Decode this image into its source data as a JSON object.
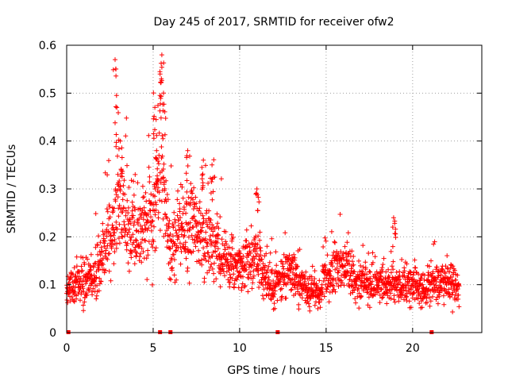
{
  "chart_data": {
    "type": "scatter",
    "title": "Day 245 of 2017, SRMTID for receiver ofw2",
    "xlabel": "GPS time / hours",
    "ylabel": "SRMTID / TECUs",
    "xlim": [
      0,
      24
    ],
    "ylim": [
      0,
      0.6
    ],
    "xticks": [
      "0",
      "5",
      "10",
      "15",
      "20"
    ],
    "yticks": [
      "0",
      "0.1",
      "0.2",
      "0.3",
      "0.4",
      "0.5",
      "0.6"
    ],
    "grid": true,
    "marker": "+",
    "color": "#ff0000",
    "series": [
      {
        "name": "ofw2",
        "trend": [
          [
            0.0,
            0.09
          ],
          [
            0.5,
            0.1
          ],
          [
            1.0,
            0.11
          ],
          [
            1.5,
            0.11
          ],
          [
            2.0,
            0.15
          ],
          [
            2.5,
            0.2
          ],
          [
            3.0,
            0.28
          ],
          [
            3.5,
            0.24
          ],
          [
            4.0,
            0.19
          ],
          [
            4.5,
            0.22
          ],
          [
            5.0,
            0.27
          ],
          [
            5.5,
            0.33
          ],
          [
            6.0,
            0.17
          ],
          [
            6.5,
            0.21
          ],
          [
            7.0,
            0.22
          ],
          [
            7.5,
            0.2
          ],
          [
            8.0,
            0.19
          ],
          [
            8.5,
            0.19
          ],
          [
            9.0,
            0.16
          ],
          [
            9.5,
            0.14
          ],
          [
            10.0,
            0.13
          ],
          [
            10.5,
            0.14
          ],
          [
            11.0,
            0.17
          ],
          [
            11.5,
            0.11
          ],
          [
            12.0,
            0.1
          ],
          [
            12.5,
            0.12
          ],
          [
            13.0,
            0.13
          ],
          [
            13.5,
            0.1
          ],
          [
            14.0,
            0.09
          ],
          [
            14.5,
            0.08
          ],
          [
            15.0,
            0.11
          ],
          [
            15.5,
            0.13
          ],
          [
            16.0,
            0.14
          ],
          [
            16.5,
            0.12
          ],
          [
            17.0,
            0.11
          ],
          [
            17.5,
            0.1
          ],
          [
            18.0,
            0.1
          ],
          [
            18.5,
            0.1
          ],
          [
            19.0,
            0.1
          ],
          [
            19.5,
            0.1
          ],
          [
            20.0,
            0.1
          ],
          [
            20.5,
            0.09
          ],
          [
            21.0,
            0.1
          ],
          [
            21.5,
            0.1
          ],
          [
            22.0,
            0.11
          ],
          [
            22.7,
            0.09
          ]
        ],
        "sample_step_hours": 0.011,
        "x_end": 22.7
      }
    ],
    "peaks": [
      {
        "x": 2.8,
        "y": 0.57
      },
      {
        "x": 2.9,
        "y": 0.47
      },
      {
        "x": 3.1,
        "y": 0.4
      },
      {
        "x": 5.1,
        "y": 0.47
      },
      {
        "x": 5.4,
        "y": 0.54
      },
      {
        "x": 5.5,
        "y": 0.58
      },
      {
        "x": 5.6,
        "y": 0.5
      },
      {
        "x": 5.2,
        "y": 0.38
      },
      {
        "x": 7.0,
        "y": 0.38
      },
      {
        "x": 7.9,
        "y": 0.36
      },
      {
        "x": 8.4,
        "y": 0.35
      },
      {
        "x": 11.0,
        "y": 0.3
      },
      {
        "x": 18.9,
        "y": 0.24
      }
    ],
    "baseline_markers_x": [
      0.1,
      5.4,
      6.0,
      12.2,
      21.1
    ]
  }
}
